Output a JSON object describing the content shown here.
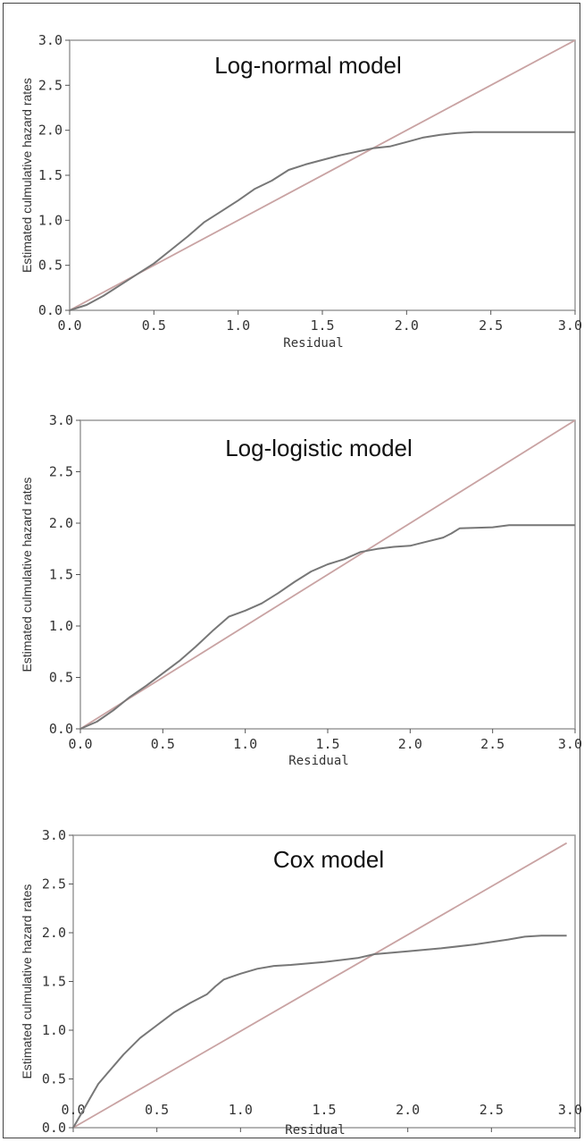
{
  "chart_data": [
    {
      "type": "line",
      "title": "Log-normal model",
      "xlabel": "Residual",
      "ylabel": "Estimated culmulative hazard rates",
      "xlim": [
        0,
        3
      ],
      "ylim": [
        0,
        3
      ],
      "x_ticks": [
        "0.0",
        "0.5",
        "1.0",
        "1.5",
        "2.0",
        "2.5",
        "3.0"
      ],
      "y_ticks": [
        "0.0",
        "0.5",
        "1.0",
        "1.5",
        "2.0",
        "2.5",
        "3.0"
      ],
      "grid": false,
      "series": [
        {
          "style": "reference",
          "color": "#c9a3a3",
          "x": [
            0,
            3
          ],
          "y": [
            0,
            3
          ]
        },
        {
          "style": "estimate",
          "color": "#777777",
          "x": [
            0.0,
            0.1,
            0.2,
            0.3,
            0.4,
            0.5,
            0.6,
            0.7,
            0.8,
            0.9,
            1.0,
            1.1,
            1.2,
            1.3,
            1.4,
            1.5,
            1.6,
            1.7,
            1.8,
            1.9,
            2.0,
            2.1,
            2.2,
            2.3,
            2.4,
            2.6,
            2.8,
            3.0
          ],
          "y": [
            0.0,
            0.06,
            0.16,
            0.28,
            0.4,
            0.52,
            0.67,
            0.82,
            0.98,
            1.1,
            1.22,
            1.35,
            1.44,
            1.56,
            1.62,
            1.67,
            1.72,
            1.76,
            1.8,
            1.82,
            1.87,
            1.92,
            1.95,
            1.97,
            1.98,
            1.98,
            1.98,
            1.98
          ]
        }
      ]
    },
    {
      "type": "line",
      "title": "Log-logistic model",
      "xlabel": "Residual",
      "ylabel": "Estimated culmulative hazard rates",
      "xlim": [
        0,
        3
      ],
      "ylim": [
        0,
        3
      ],
      "x_ticks": [
        "0.0",
        "0.5",
        "1.0",
        "1.5",
        "2.0",
        "2.5",
        "3.0"
      ],
      "y_ticks": [
        "0.0",
        "0.5",
        "1.0",
        "1.5",
        "2.0",
        "2.5",
        "3.0"
      ],
      "grid": false,
      "series": [
        {
          "style": "reference",
          "color": "#c9a3a3",
          "x": [
            0,
            3
          ],
          "y": [
            0,
            3
          ]
        },
        {
          "style": "estimate",
          "color": "#777777",
          "x": [
            0.0,
            0.1,
            0.2,
            0.3,
            0.4,
            0.5,
            0.6,
            0.7,
            0.8,
            0.9,
            1.0,
            1.1,
            1.2,
            1.3,
            1.4,
            1.5,
            1.6,
            1.7,
            1.8,
            1.9,
            2.0,
            2.1,
            2.2,
            2.25,
            2.3,
            2.5,
            2.6,
            3.0
          ],
          "y": [
            0.0,
            0.07,
            0.18,
            0.31,
            0.42,
            0.54,
            0.66,
            0.8,
            0.95,
            1.09,
            1.15,
            1.22,
            1.32,
            1.43,
            1.53,
            1.6,
            1.65,
            1.72,
            1.75,
            1.77,
            1.78,
            1.82,
            1.86,
            1.9,
            1.95,
            1.96,
            1.98,
            1.98
          ]
        }
      ]
    },
    {
      "type": "line",
      "title": "Cox model",
      "xlabel": "Residual",
      "ylabel": "Estimated culmulative hazard rates",
      "xlim": [
        0,
        3
      ],
      "ylim": [
        0,
        3
      ],
      "x_ticks": [
        "0.0",
        "0.5",
        "1.0",
        "1.5",
        "2.0",
        "2.5",
        "3.0"
      ],
      "y_ticks": [
        "0.0",
        "0.5",
        "1.0",
        "1.5",
        "2.0",
        "2.5",
        "3.0"
      ],
      "grid": false,
      "series": [
        {
          "style": "reference",
          "color": "#c9a3a3",
          "x": [
            0,
            2.95
          ],
          "y": [
            0,
            2.92
          ]
        },
        {
          "style": "estimate",
          "color": "#777777",
          "x": [
            0.0,
            0.05,
            0.1,
            0.15,
            0.2,
            0.3,
            0.4,
            0.5,
            0.6,
            0.7,
            0.8,
            0.85,
            0.9,
            1.0,
            1.1,
            1.2,
            1.3,
            1.5,
            1.7,
            1.8,
            2.0,
            2.2,
            2.4,
            2.6,
            2.7,
            2.8,
            2.95
          ],
          "y": [
            0.0,
            0.15,
            0.3,
            0.45,
            0.55,
            0.75,
            0.92,
            1.05,
            1.18,
            1.28,
            1.37,
            1.45,
            1.52,
            1.58,
            1.63,
            1.66,
            1.67,
            1.7,
            1.74,
            1.78,
            1.81,
            1.84,
            1.88,
            1.93,
            1.96,
            1.97,
            1.97
          ]
        }
      ]
    }
  ]
}
